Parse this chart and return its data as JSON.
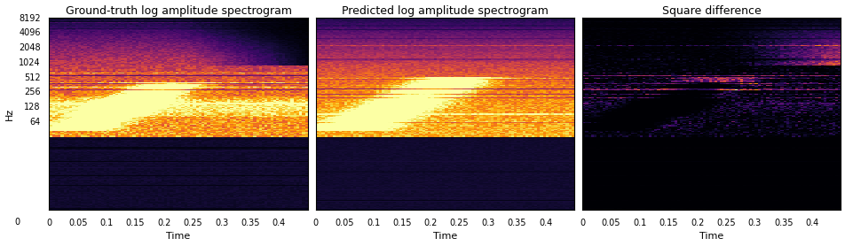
{
  "titles": [
    "Ground-truth log amplitude spectrogram",
    "Predicted log amplitude spectrogram",
    "Square difference"
  ],
  "xlabel": "Time",
  "ylabel": "Hz",
  "yticks": [
    0,
    64,
    128,
    256,
    512,
    1024,
    2048,
    4096,
    8192
  ],
  "ytick_labels": [
    "0",
    "64",
    "128",
    "256",
    "512",
    "1024",
    "2048",
    "4096",
    "8192"
  ],
  "xticks": [
    0,
    0.05,
    0.1,
    0.15,
    0.2,
    0.25,
    0.3,
    0.35,
    0.4
  ],
  "time_max": 0.45,
  "freq_max": 8192,
  "cmap1": "inferno",
  "cmap3": "inferno",
  "figsize": [
    9.53,
    2.78
  ],
  "dpi": 100,
  "seed": 42,
  "n_time": 90,
  "n_freq": 200,
  "background_color": "#000000",
  "title_fontsize": 9,
  "label_fontsize": 8,
  "tick_fontsize": 7
}
